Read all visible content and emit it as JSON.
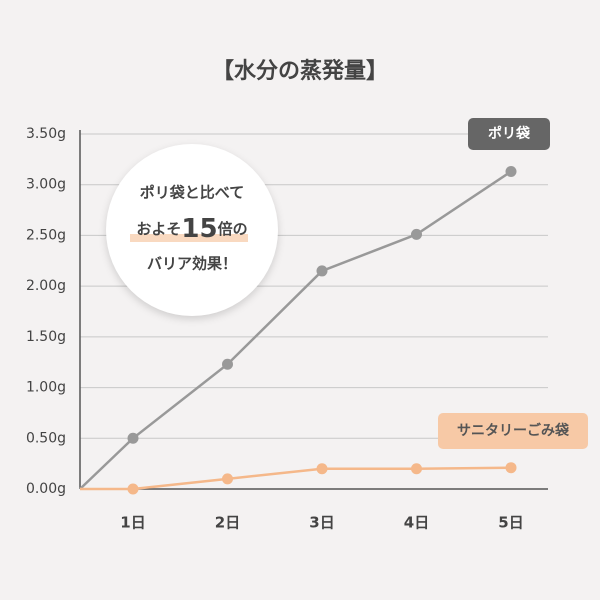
{
  "chart_data": {
    "type": "line",
    "title": "【水分の蒸発量】",
    "categories": [
      null,
      "1日",
      "2日",
      "3日",
      "4日",
      "5日"
    ],
    "series": [
      {
        "name": "ポリ袋",
        "color": "#999999",
        "values": [
          0,
          0.5,
          1.23,
          2.15,
          2.51,
          3.13
        ]
      },
      {
        "name": "サニタリーごみ袋",
        "color": "#f5b88a",
        "values": [
          0,
          0.0,
          0.1,
          0.2,
          0.2,
          0.21
        ]
      }
    ],
    "ylim": [
      0,
      3.5
    ],
    "yticks": [
      {
        "value": 0,
        "label": "0.00g"
      },
      {
        "value": 0.5,
        "label": "0.50g"
      },
      {
        "value": 1,
        "label": "1.00g"
      },
      {
        "value": 1.5,
        "label": "1.50g"
      },
      {
        "value": 2,
        "label": "2.00g"
      },
      {
        "value": 2.5,
        "label": "2.50g"
      },
      {
        "value": 3,
        "label": "3.00g"
      },
      {
        "value": 3.5,
        "label": "3.50g"
      }
    ],
    "grid": true,
    "annotation": {
      "line1": "ポリ袋と比べて",
      "line2a": "およそ",
      "line2b": "15",
      "line2c": "倍の",
      "line3": "バリア効果！"
    }
  }
}
